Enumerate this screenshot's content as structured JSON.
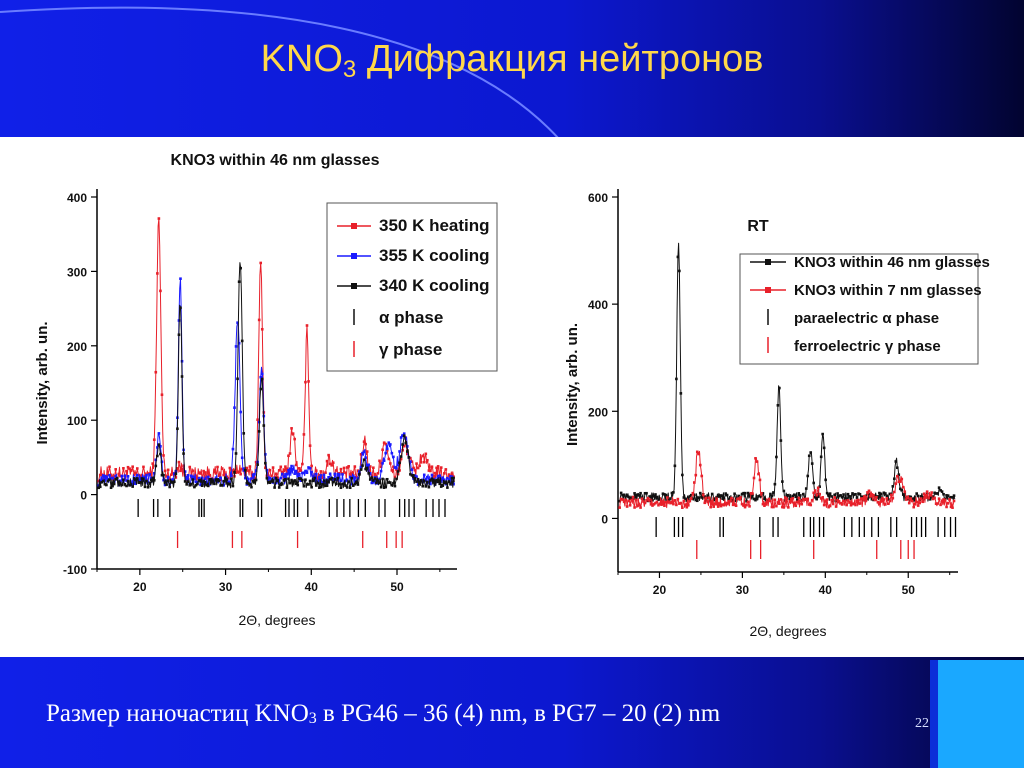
{
  "slide": {
    "title_main": "KNO",
    "title_sub": "3",
    "title_rest": " Дифракция нейтронов",
    "footer_part1": "Размер наночастиц KNO",
    "footer_sub": "3",
    "footer_part2": " в PG46  – 36 (4) nm, в PG7  – 20 (2) nm",
    "slide_number": "22"
  },
  "colors": {
    "title": "#ffd84a",
    "red": "#e8202a",
    "blue": "#1a1aff",
    "black": "#111111"
  },
  "chart_data": [
    {
      "type": "line",
      "title": "KNO3 within 46 nm glasses",
      "xlabel": "2Θ, degrees",
      "ylabel": "Intensity, arb. un.",
      "xlim": [
        15,
        57
      ],
      "ylim": [
        -100,
        400
      ],
      "xticks": [
        "20",
        "30",
        "40",
        "50"
      ],
      "yticks": [
        "-100",
        "0",
        "100",
        "200",
        "300",
        "400"
      ],
      "legend": [
        "350 K heating",
        "355 K cooling",
        "340 K cooling",
        "α phase",
        "γ phase"
      ],
      "series": [
        {
          "name": "350 K heating",
          "color": "#e8202a",
          "baseline": 28,
          "noise": 10,
          "peaks": [
            [
              22.2,
              340,
              0.35
            ],
            [
              24.6,
              12,
              0.4
            ],
            [
              31.6,
              8,
              0.4
            ],
            [
              34.1,
              280,
              0.32
            ],
            [
              37.8,
              60,
              0.4
            ],
            [
              39.5,
              190,
              0.3
            ],
            [
              42.2,
              20,
              0.5
            ],
            [
              46.2,
              45,
              0.4
            ],
            [
              48.6,
              45,
              0.5
            ],
            [
              51.0,
              40,
              0.6
            ],
            [
              53.0,
              25,
              0.6
            ]
          ]
        },
        {
          "name": "355 K cooling",
          "color": "#1a1aff",
          "baseline": 20,
          "noise": 8,
          "peaks": [
            [
              22.2,
              60,
              0.35
            ],
            [
              24.7,
              270,
              0.3
            ],
            [
              31.4,
              215,
              0.4
            ],
            [
              34.2,
              150,
              0.35
            ],
            [
              37.8,
              15,
              0.5
            ],
            [
              39.5,
              15,
              0.5
            ],
            [
              46.2,
              35,
              0.5
            ],
            [
              49.0,
              50,
              0.7
            ],
            [
              50.8,
              60,
              0.7
            ]
          ]
        },
        {
          "name": "340 K cooling",
          "color": "#111111",
          "baseline": 16,
          "noise": 7,
          "peaks": [
            [
              22.2,
              50,
              0.35
            ],
            [
              24.7,
              240,
              0.3
            ],
            [
              31.7,
              300,
              0.35
            ],
            [
              34.2,
              140,
              0.35
            ],
            [
              46.2,
              25,
              0.5
            ],
            [
              50.9,
              60,
              0.6
            ]
          ]
        }
      ],
      "alpha_phase_ticks": [
        19.8,
        21.6,
        22.1,
        23.5,
        26.9,
        27.2,
        27.5,
        31.7,
        32.0,
        33.8,
        34.2,
        37.0,
        37.4,
        38.0,
        38.4,
        39.6,
        42.1,
        43.0,
        43.8,
        44.5,
        45.5,
        46.3,
        47.9,
        48.6,
        50.3,
        50.9,
        51.4,
        52.0,
        53.4,
        54.2,
        54.9,
        55.6
      ],
      "gamma_phase_ticks": [
        24.4,
        30.8,
        31.9,
        38.4,
        46.0,
        48.8,
        49.9,
        50.6
      ]
    },
    {
      "type": "line",
      "title": "RT",
      "xlabel": "2Θ, degrees",
      "ylabel": "Intensity, arb. un.",
      "xlim": [
        15,
        56
      ],
      "ylim": [
        -100,
        600
      ],
      "xticks": [
        "20",
        "30",
        "40",
        "50"
      ],
      "yticks": [
        "0",
        "200",
        "400",
        "600"
      ],
      "legend": [
        "KNO3 within 46 nm glasses",
        "KNO3 within 7 nm glasses",
        "paraelectric α phase",
        "ferroelectric γ phase"
      ],
      "series": [
        {
          "name": "KNO3 within 46 nm glasses",
          "color": "#111111",
          "baseline": 40,
          "noise": 8,
          "peaks": [
            [
              22.3,
              475,
              0.3
            ],
            [
              34.4,
              210,
              0.3
            ],
            [
              38.2,
              85,
              0.35
            ],
            [
              39.7,
              125,
              0.3
            ],
            [
              48.6,
              65,
              0.4
            ],
            [
              53.8,
              10,
              0.5
            ]
          ]
        },
        {
          "name": "KNO3 within 7 nm glasses",
          "color": "#e8202a",
          "baseline": 30,
          "noise": 10,
          "peaks": [
            [
              24.7,
              100,
              0.45
            ],
            [
              31.7,
              80,
              0.45
            ],
            [
              39.0,
              20,
              0.6
            ],
            [
              45.5,
              15,
              0.6
            ],
            [
              48.9,
              45,
              0.7
            ],
            [
              52.5,
              15,
              0.7
            ]
          ]
        }
      ],
      "alpha_phase_ticks": [
        19.6,
        21.8,
        22.3,
        22.8,
        27.3,
        27.7,
        32.1,
        33.7,
        34.3,
        37.4,
        38.2,
        38.6,
        39.3,
        39.8,
        42.3,
        43.2,
        44.1,
        44.7,
        45.6,
        46.4,
        47.9,
        48.6,
        50.4,
        51.0,
        51.6,
        52.1,
        53.6,
        54.4,
        55.1,
        55.7
      ],
      "gamma_phase_ticks": [
        24.5,
        31.0,
        32.2,
        38.6,
        46.2,
        49.1,
        50.0,
        50.7
      ]
    }
  ]
}
